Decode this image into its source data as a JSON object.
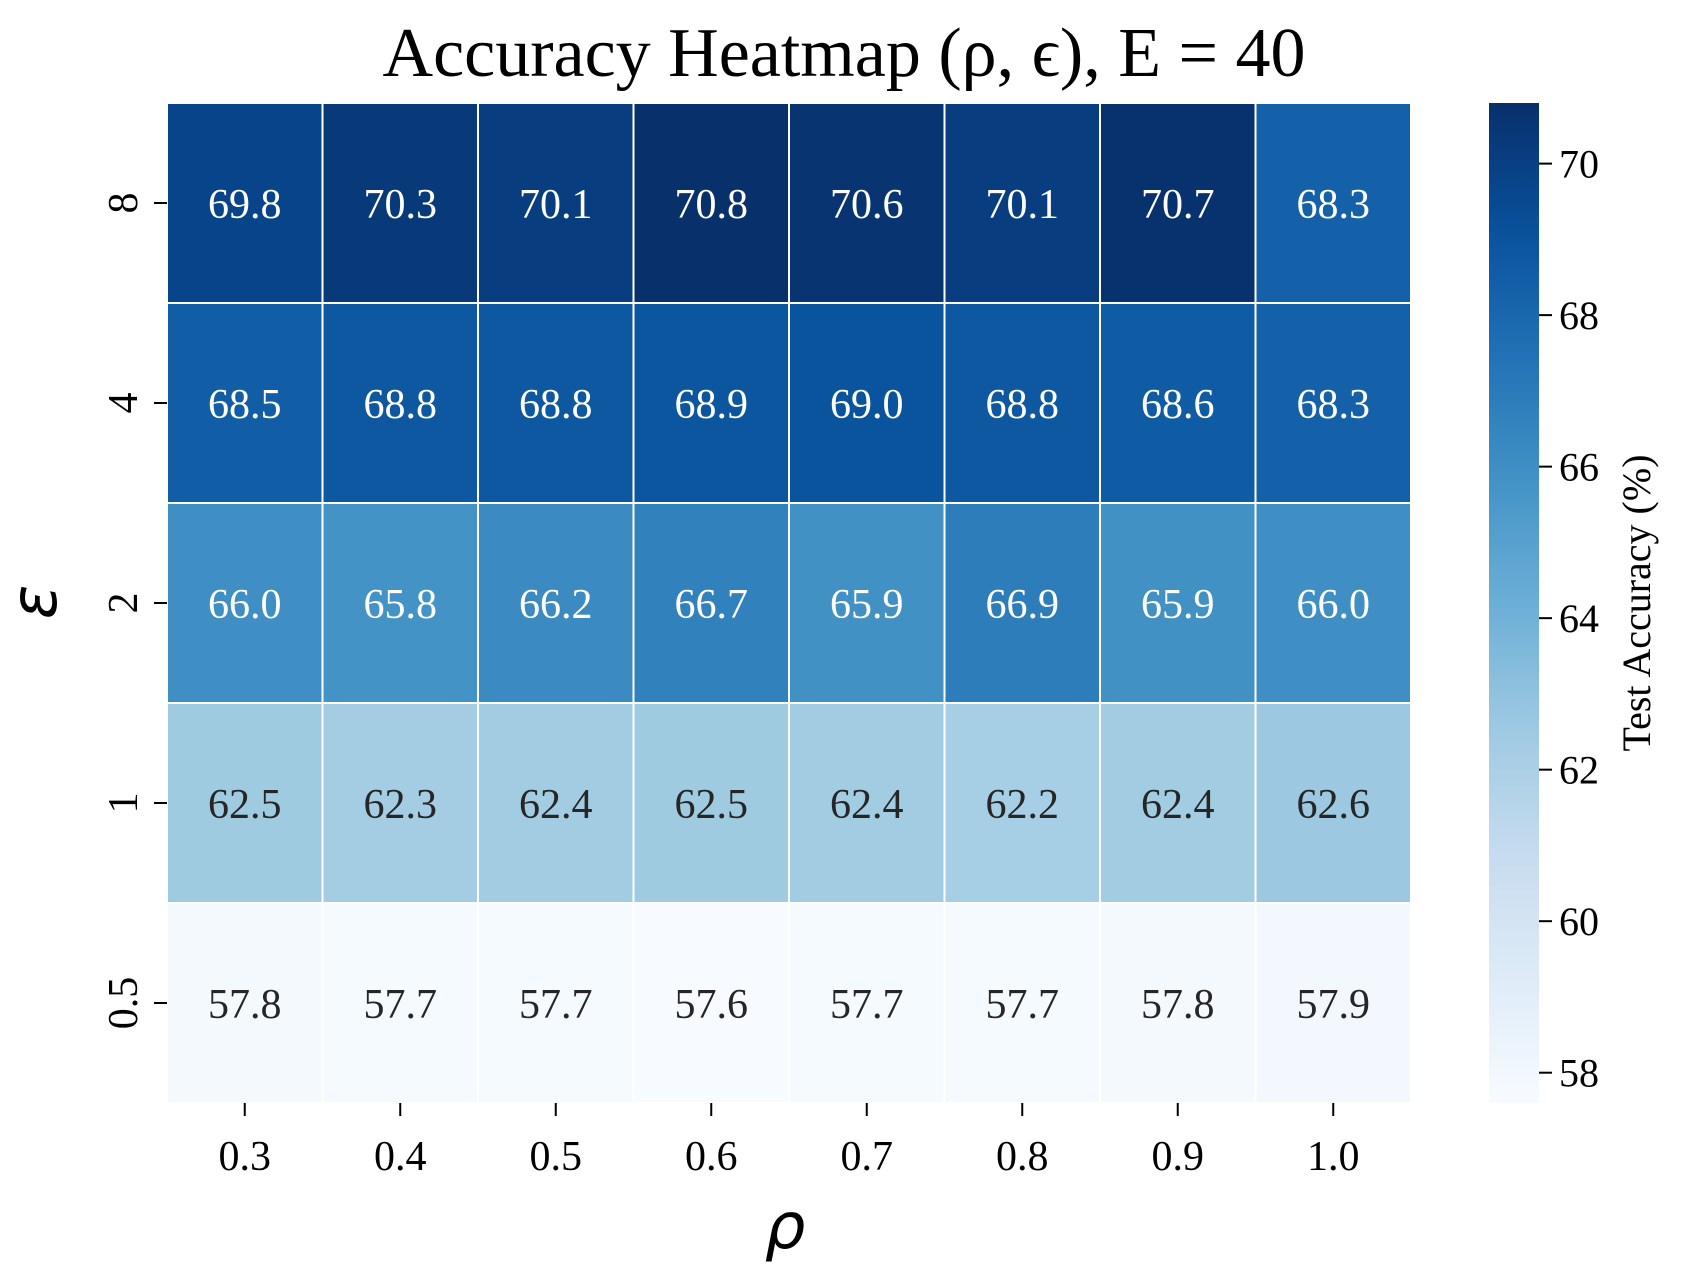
{
  "chart_data": {
    "type": "heatmap",
    "title": "Accuracy Heatmap (ρ, ϵ), E = 40",
    "xlabel": "ρ",
    "ylabel": "ε",
    "x_categories": [
      "0.3",
      "0.4",
      "0.5",
      "0.6",
      "0.7",
      "0.8",
      "0.9",
      "1.0"
    ],
    "y_categories": [
      "8",
      "4",
      "2",
      "1",
      "0.5"
    ],
    "values": [
      [
        69.8,
        70.3,
        70.1,
        70.8,
        70.6,
        70.1,
        70.7,
        68.3
      ],
      [
        68.5,
        68.8,
        68.8,
        68.9,
        69.0,
        68.8,
        68.6,
        68.3
      ],
      [
        66.0,
        65.8,
        66.2,
        66.7,
        65.9,
        66.9,
        65.9,
        66.0
      ],
      [
        62.5,
        62.3,
        62.4,
        62.5,
        62.4,
        62.2,
        62.4,
        62.6
      ],
      [
        57.8,
        57.7,
        57.7,
        57.6,
        57.7,
        57.7,
        57.8,
        57.9
      ]
    ],
    "colorbar": {
      "label": "Test Accuracy (%)",
      "range": [
        57.6,
        70.8
      ],
      "ticks": [
        "58",
        "60",
        "62",
        "64",
        "66",
        "68",
        "70"
      ],
      "colormap": "Blues"
    },
    "annotation_colors": {
      "dark": "#262626",
      "light": "#ffffff"
    },
    "grid": false,
    "legend": "none"
  }
}
